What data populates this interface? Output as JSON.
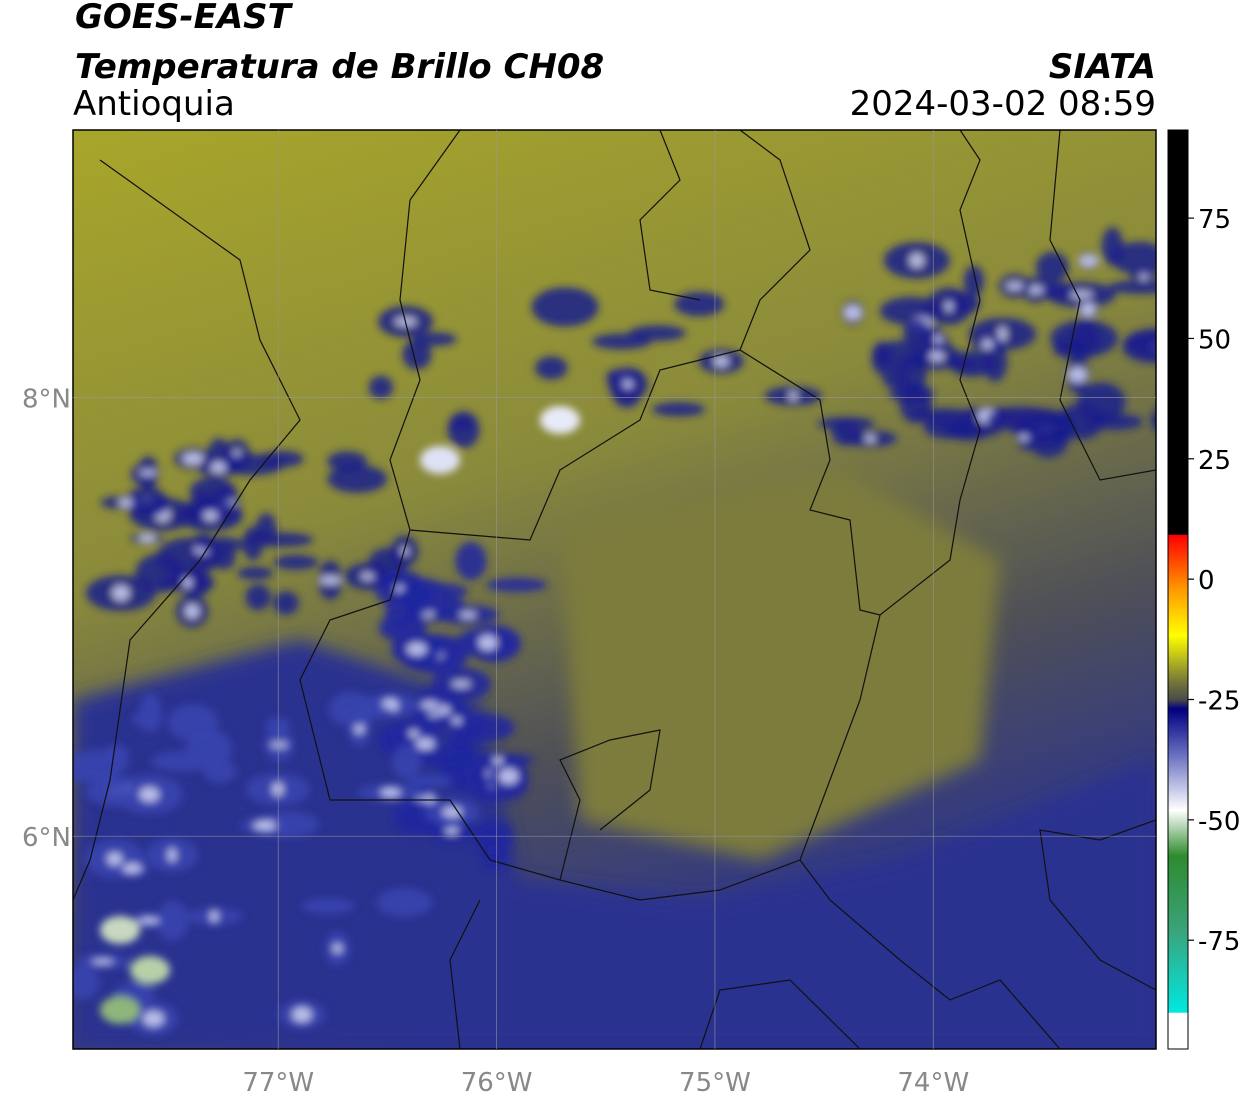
{
  "title": "GOES-EAST",
  "subtitle": "Temperatura de Brillo CH08",
  "region": "Antioquia",
  "source": "SIATA",
  "datetime": "2024-03-02 08:59",
  "map": {
    "xlim": [
      -77.94,
      -72.98
    ],
    "ylim": [
      5.03,
      9.22
    ],
    "xticks": [
      {
        "value": -77,
        "label": "77°W"
      },
      {
        "value": -76,
        "label": "76°W"
      },
      {
        "value": -75,
        "label": "75°W"
      },
      {
        "value": -74,
        "label": "74°W"
      }
    ],
    "yticks": [
      {
        "value": 8,
        "label": "8°N"
      },
      {
        "value": 6,
        "label": "6°N"
      }
    ],
    "grid": true
  },
  "colorbar": {
    "lim": [
      -97.6,
      93.3
    ],
    "ticks": [
      75,
      50,
      25,
      0,
      -25,
      -50,
      -75
    ]
  }
}
